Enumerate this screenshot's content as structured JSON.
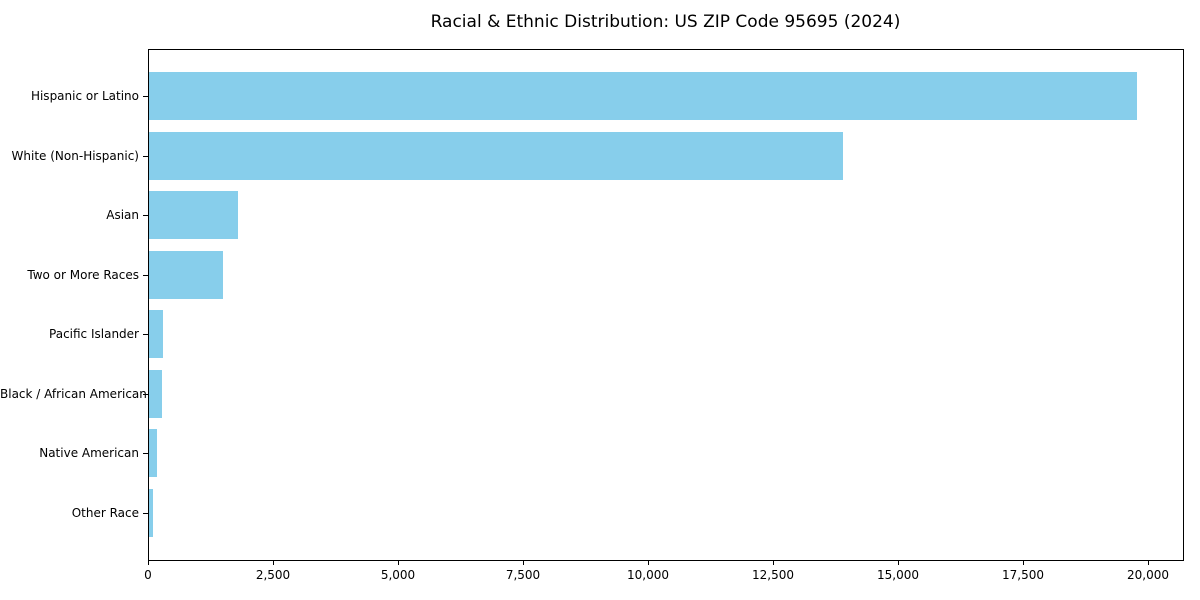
{
  "title": "Racial & Ethnic Distribution: US ZIP Code 95695 (2024)",
  "chart_data": {
    "type": "bar",
    "orientation": "horizontal",
    "title": "Racial & Ethnic Distribution: US ZIP Code 95695 (2024)",
    "categories": [
      "Hispanic or Latino",
      "White (Non-Hispanic)",
      "Asian",
      "Two or More Races",
      "Pacific Islander",
      "Black / African American",
      "Native American",
      "Other Race"
    ],
    "values": [
      19780,
      13900,
      1790,
      1500,
      290,
      280,
      180,
      90
    ],
    "xlabel": "",
    "ylabel": "",
    "xlim": [
      0,
      20700
    ],
    "x_ticks": [
      0,
      2500,
      5000,
      7500,
      10000,
      12500,
      15000,
      17500,
      20000
    ],
    "x_tick_labels": [
      "0",
      "2,500",
      "5,000",
      "7,500",
      "10,000",
      "12,500",
      "15,000",
      "17,500",
      "20,000"
    ],
    "bar_color": "#87CEEB",
    "axis_color": "#000000",
    "background_color": "#ffffff",
    "grid": false,
    "legend": null
  }
}
